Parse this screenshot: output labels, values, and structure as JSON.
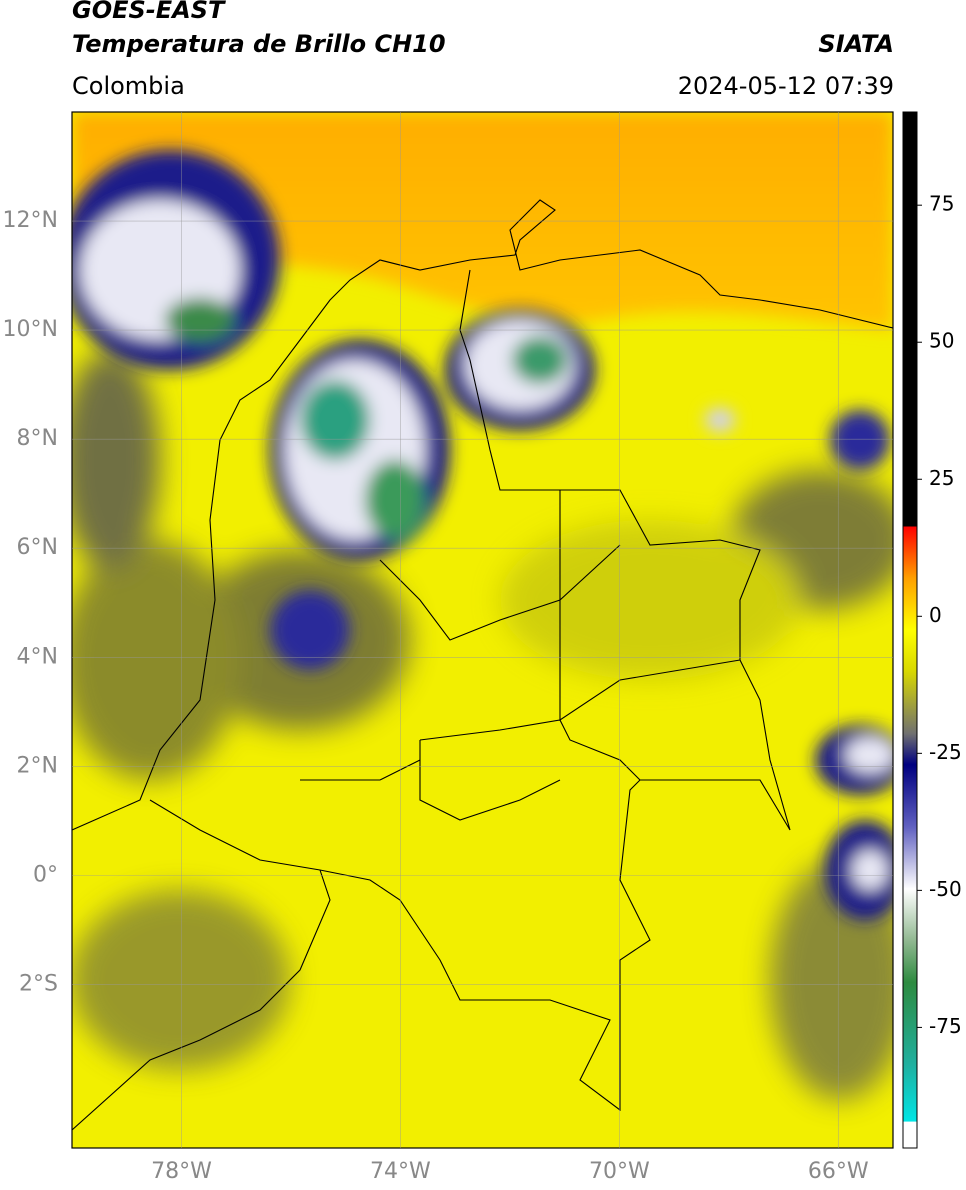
{
  "header": {
    "title": "GOES-EAST",
    "subtitle": "Temperatura de Brillo CH10",
    "region": "Colombia",
    "source": "SIATA",
    "datetime": "2024-05-12 07:39"
  },
  "map": {
    "xlim": [
      -80,
      -65
    ],
    "ylim": [
      -5,
      14
    ],
    "xticks": [
      {
        "value": -78,
        "label": "78°W"
      },
      {
        "value": -74,
        "label": "74°W"
      },
      {
        "value": -70,
        "label": "70°W"
      },
      {
        "value": -66,
        "label": "66°W"
      }
    ],
    "yticks": [
      {
        "value": -2,
        "label": "2°S"
      },
      {
        "value": 0,
        "label": "0°"
      },
      {
        "value": 2,
        "label": "2°N"
      },
      {
        "value": 4,
        "label": "4°N"
      },
      {
        "value": 6,
        "label": "6°N"
      },
      {
        "value": 8,
        "label": "8°N"
      },
      {
        "value": 10,
        "label": "10°N"
      },
      {
        "value": 12,
        "label": "12°N"
      }
    ],
    "grid": true
  },
  "colorbar": {
    "lim": [
      -97,
      92
    ],
    "ticks": [
      75,
      50,
      25,
      0,
      -25,
      -50,
      -75
    ]
  }
}
